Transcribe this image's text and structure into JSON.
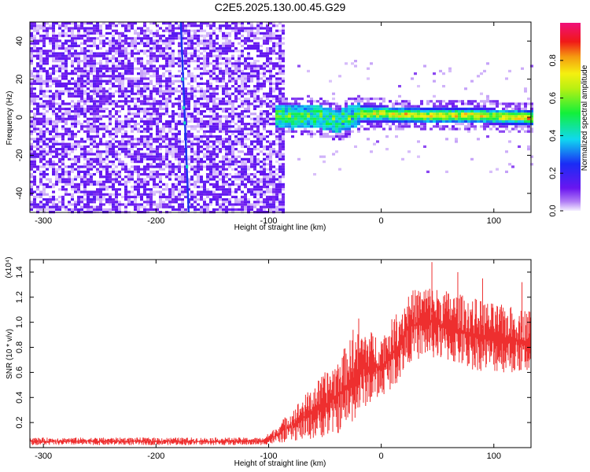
{
  "title": "C2E5.2025.130.00.45.G29",
  "colors": {
    "snr_line": "#ee2f2f",
    "noise_purple": "#7a2ef0",
    "track_blue": "#1b34f0"
  },
  "chart_data": [
    {
      "type": "heatmap",
      "title": "C2E5.2025.130.00.45.G29",
      "xlabel": "Height of straight line (km)",
      "ylabel": "Frequency (Hz)",
      "xlim": [
        -312,
        133
      ],
      "ylim": [
        -50,
        50
      ],
      "xticks": [
        -300,
        -200,
        -100,
        0,
        100
      ],
      "yticks": [
        -40,
        -20,
        0,
        20,
        40
      ],
      "colorbar": {
        "label": "Normalized spectral amplitude",
        "range": [
          0,
          1
        ],
        "ticks": [
          "0.0",
          "0.2",
          "0.4",
          "0.6",
          "0.8"
        ],
        "colormap": "rainbow (purple-blue-cyan-green-yellow-orange-red-magenta)"
      },
      "features": {
        "noise_region_x": [
          -312,
          -88
        ],
        "noise_amplitude": 0.1,
        "vertical_track": {
          "x_top": -178,
          "x_bottom": -171,
          "amplitude": 0.3
        },
        "signal_start_x": -95,
        "signal_center_path": [
          [
            -95,
            1
          ],
          [
            -80,
            0
          ],
          [
            -60,
            1
          ],
          [
            -40,
            -2
          ],
          [
            -20,
            2
          ],
          [
            0,
            2
          ],
          [
            40,
            1
          ],
          [
            80,
            1
          ],
          [
            133,
            0
          ]
        ],
        "signal_peak_amplitude": 0.9
      }
    },
    {
      "type": "area",
      "xlabel": "Height of straight line (km)",
      "ylabel": "SNR (10 * v/v)",
      "y_multiplier": "(x10⁴)",
      "xlim": [
        -312,
        133
      ],
      "ylim": [
        0,
        15000
      ],
      "xticks": [
        -300,
        -200,
        -100,
        0,
        100
      ],
      "yticks": [
        0.2,
        0.4,
        0.6,
        0.8,
        1.0,
        1.2,
        1.4
      ],
      "series": [
        {
          "envelope_x": [
            -312,
            -200,
            -105,
            -95,
            -80,
            -60,
            -40,
            -25,
            -15,
            0,
            15,
            25,
            40,
            60,
            80,
            100,
            133
          ],
          "envelope_min": [
            200,
            200,
            200,
            300,
            500,
            700,
            1000,
            2000,
            3200,
            4000,
            5200,
            6800,
            7200,
            6800,
            6200,
            6000,
            5900
          ],
          "envelope_max": [
            800,
            800,
            800,
            1500,
            3000,
            5000,
            7000,
            9000,
            9500,
            9000,
            11000,
            12500,
            13000,
            12500,
            12000,
            11500,
            11000
          ]
        }
      ]
    }
  ]
}
